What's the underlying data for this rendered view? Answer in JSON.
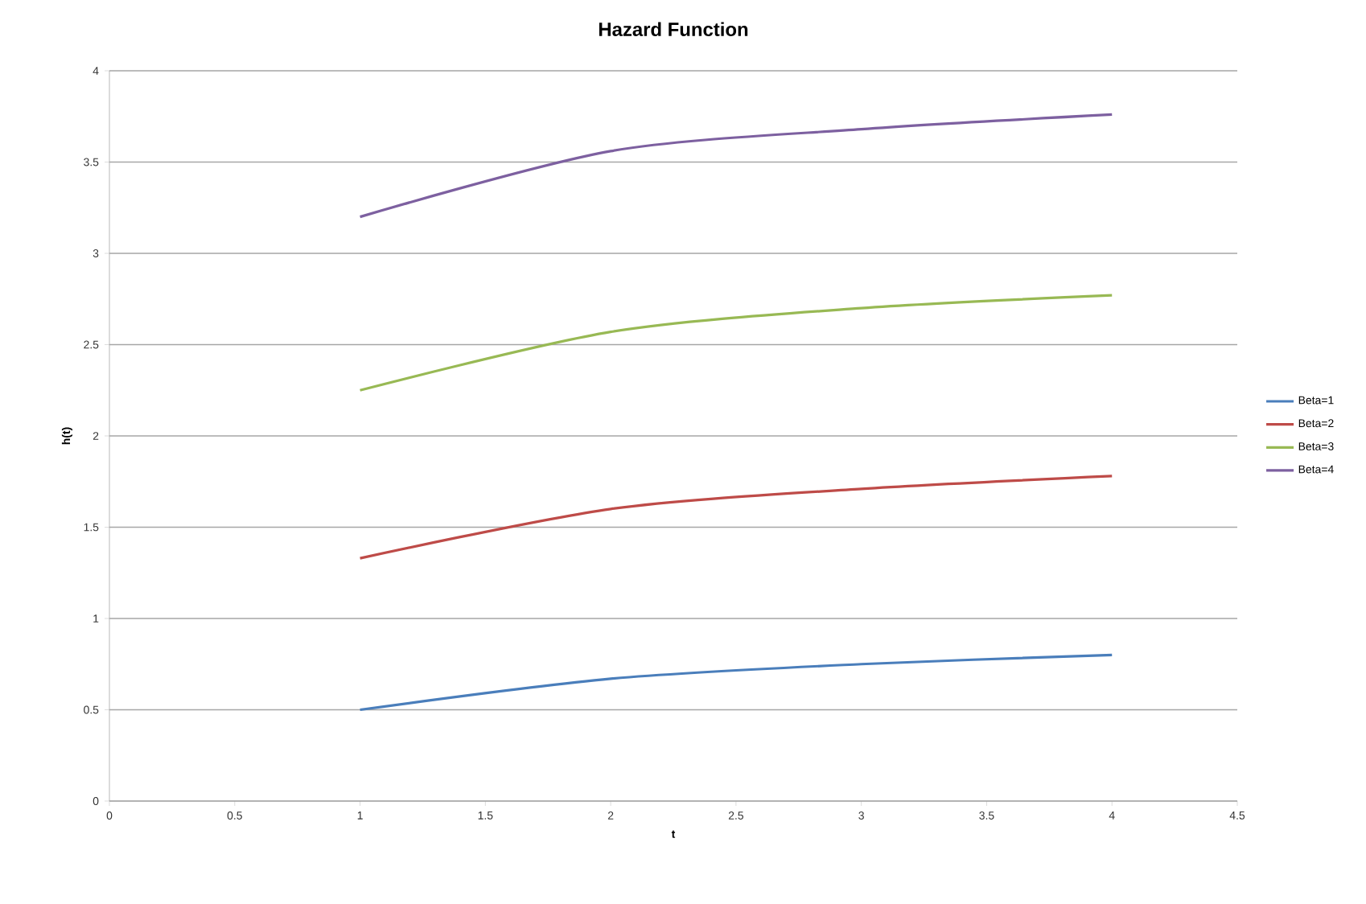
{
  "chart_data": {
    "type": "line",
    "title": "Hazard Function",
    "xlabel": "t",
    "ylabel": "h(t)",
    "x": [
      1,
      2,
      3,
      4
    ],
    "series": [
      {
        "name": "Beta=1",
        "color": "#4a7ebb",
        "values": [
          0.5,
          0.67,
          0.75,
          0.8
        ]
      },
      {
        "name": "Beta=2",
        "color": "#be4b48",
        "values": [
          1.33,
          1.6,
          1.71,
          1.78
        ]
      },
      {
        "name": "Beta=3",
        "color": "#98b954",
        "values": [
          2.25,
          2.57,
          2.7,
          2.77
        ]
      },
      {
        "name": "Beta=4",
        "color": "#7d60a0",
        "values": [
          3.2,
          3.56,
          3.68,
          3.76
        ]
      }
    ],
    "xlim": [
      0,
      4.5
    ],
    "xticks": [
      0,
      0.5,
      1,
      1.5,
      2,
      2.5,
      3,
      3.5,
      4,
      4.5
    ],
    "ylim": [
      0,
      4
    ],
    "yticks": [
      0,
      0.5,
      1,
      1.5,
      2,
      2.5,
      3,
      3.5,
      4
    ],
    "grid": "y",
    "legend": "right",
    "marker": "none",
    "line_style": "solid"
  }
}
